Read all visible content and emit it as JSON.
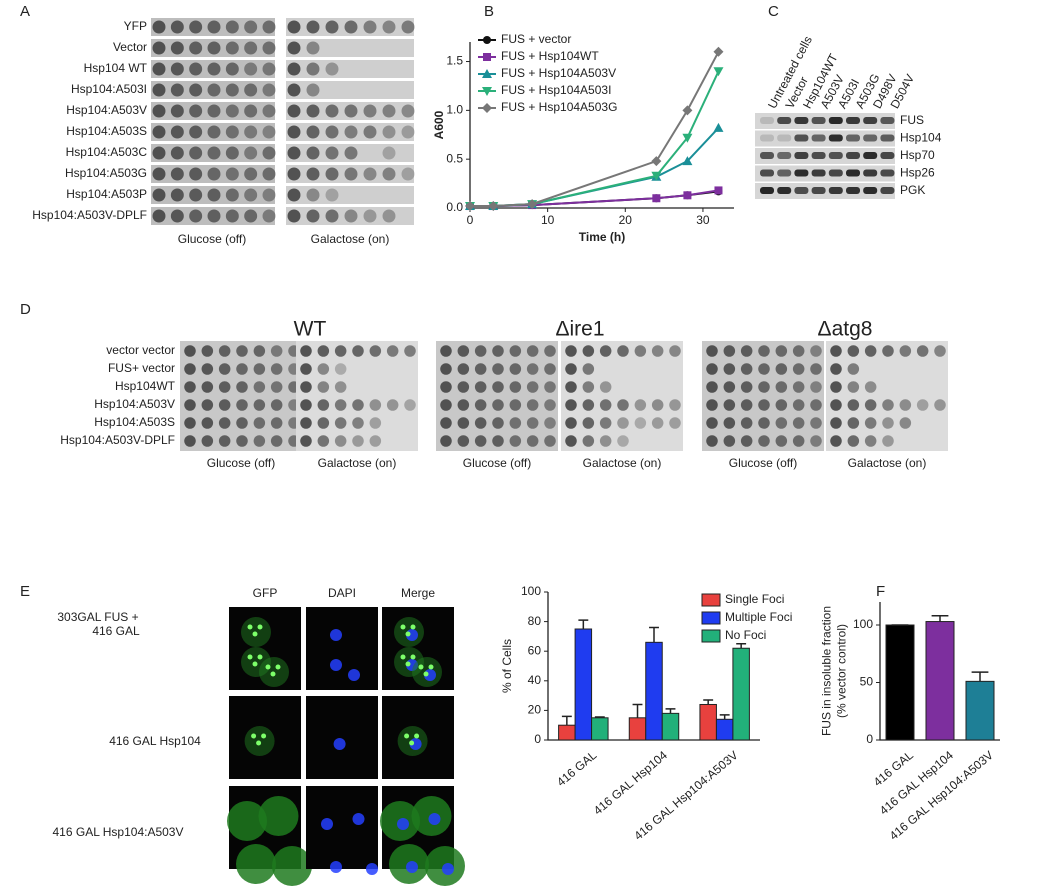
{
  "panel_labels": [
    "A",
    "B",
    "C",
    "D",
    "E",
    "F"
  ],
  "panel_a": {
    "rows": [
      "YFP",
      "Vector",
      "Hsp104 WT",
      "Hsp104:A503I",
      "Hsp104:A503V",
      "Hsp104:A503S",
      "Hsp104:A503C",
      "Hsp104:A503G",
      "Hsp104:A503P",
      "Hsp104:A503V-DPLF"
    ],
    "conditions": [
      "Glucose (off)",
      "Galactose (on)"
    ]
  },
  "panel_c": {
    "lanes": [
      "Untreated cells",
      "Vector",
      "Hsp104WT",
      "A503V",
      "A503I",
      "A503G",
      "D498V",
      "D504V"
    ],
    "bands": [
      "FUS",
      "Hsp104",
      "Hsp70",
      "Hsp26",
      "PGK"
    ]
  },
  "panel_d": {
    "strains": [
      "WT",
      "Δire1",
      "Δatg8"
    ],
    "rows": [
      "vector vector",
      "FUS+ vector",
      "Hsp104WT",
      "Hsp104:A503V",
      "Hsp104:A503S",
      "Hsp104:A503V-DPLF"
    ],
    "conditions": [
      "Glucose (off)",
      "Galactose (on)"
    ]
  },
  "panel_e": {
    "columns": [
      "GFP",
      "DAPI",
      "Merge"
    ],
    "rows": [
      "303GAL FUS +",
      "416 GAL",
      "416 GAL Hsp104",
      "416 GAL Hsp104:A503V"
    ]
  },
  "chart_data": [
    {
      "type": "line",
      "xlabel": "Time (h)",
      "ylabel": "A600",
      "x": [
        0,
        3,
        8,
        24,
        28,
        32
      ],
      "xlim": [
        0,
        34
      ],
      "xticks": [
        0,
        10,
        20,
        30
      ],
      "ylim": [
        0,
        1.7
      ],
      "yticks": [
        {
          "value": 0,
          "label": "0.0"
        },
        {
          "value": 0.5,
          "label": "0.5"
        },
        {
          "value": 1,
          "label": "1.0"
        },
        {
          "value": 1.5,
          "label": "1.5"
        }
      ],
      "legend": "upper left",
      "series": [
        {
          "name": "FUS + vector",
          "color": "#111111",
          "marker": "circle",
          "values": [
            0.02,
            0.02,
            0.03,
            0.1,
            0.13,
            0.17
          ]
        },
        {
          "name": "FUS + Hsp104WT",
          "color": "#7d2f9e",
          "marker": "square",
          "values": [
            0.02,
            0.02,
            0.03,
            0.1,
            0.13,
            0.18
          ]
        },
        {
          "name": "FUS + Hsp104A503V",
          "color": "#1a8f98",
          "marker": "triangle",
          "values": [
            0.02,
            0.02,
            0.04,
            0.32,
            0.48,
            0.82
          ]
        },
        {
          "name": "FUS + Hsp104A503I",
          "color": "#2bb07a",
          "marker": "triangle-down",
          "values": [
            0.02,
            0.02,
            0.04,
            0.33,
            0.72,
            1.4
          ]
        },
        {
          "name": "FUS + Hsp104A503G",
          "color": "#777777",
          "marker": "diamond",
          "values": [
            0.02,
            0.02,
            0.04,
            0.48,
            1.0,
            1.6
          ]
        }
      ]
    },
    {
      "type": "bar",
      "ylabel": "% of Cells",
      "categories": [
        "416 GAL",
        "416 GAL Hsp104",
        "416 GAL Hsp104:A503V"
      ],
      "ylim": [
        0,
        100
      ],
      "yticks": [
        0,
        20,
        40,
        60,
        80,
        100
      ],
      "legend": "upper right",
      "series": [
        {
          "name": "Single Foci",
          "color": "#e8413e",
          "values": [
            10,
            15,
            24
          ],
          "errors": [
            6,
            9,
            3
          ]
        },
        {
          "name": "Multiple Foci",
          "color": "#1f3cf0",
          "values": [
            75,
            66,
            14
          ],
          "errors": [
            6,
            10,
            3
          ]
        },
        {
          "name": "No Foci",
          "color": "#22b07a",
          "values": [
            15,
            18,
            62
          ],
          "errors": [
            0.5,
            3,
            3
          ]
        }
      ]
    },
    {
      "type": "bar",
      "ylabel": [
        "FUS in insoluble fraction",
        "(% vector control)"
      ],
      "categories": [
        "416 GAL",
        "416 GAL Hsp104",
        "416 GAL Hsp104:A503V"
      ],
      "ylim": [
        0,
        120
      ],
      "yticks": [
        0,
        50,
        100
      ],
      "series": [
        {
          "colors": [
            "#000000",
            "#7d2f9e",
            "#1e7f96"
          ],
          "values": [
            100,
            103,
            51
          ],
          "errors": [
            0,
            5,
            8
          ]
        }
      ]
    }
  ]
}
